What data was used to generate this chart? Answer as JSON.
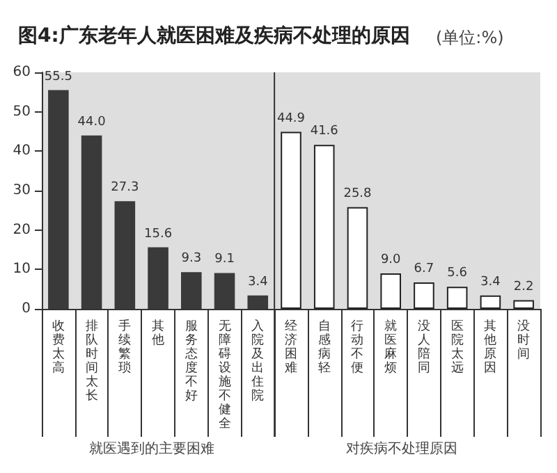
{
  "chart_data": {
    "type": "bar",
    "title": "图4:广东老年人就医困难及疾病不处理的原因",
    "subtitle": "(单位:%)",
    "categories": [
      "收费太高",
      "排队时间太长",
      "手续繁琐",
      "其他",
      "服务态度不好",
      "无障碍设施不健全",
      "入院及出住院",
      "经济困难",
      "自感病轻",
      "行动不便",
      "就医麻烦",
      "没人陪同",
      "医院太远",
      "其他原因",
      "没时间"
    ],
    "series": [
      {
        "color": "#3a3a3a",
        "values": [
          55.5,
          44.0,
          27.3,
          15.6,
          9.3,
          9.1,
          3.4,
          null,
          null,
          null,
          null,
          null,
          null,
          null,
          null
        ],
        "value_labels": [
          "55.5",
          "44.0",
          "27.3",
          "15.6",
          "9.3",
          "9.1",
          "3.4",
          null,
          null,
          null,
          null,
          null,
          null,
          null,
          null
        ]
      },
      {
        "color": "#ffffff",
        "values": [
          null,
          null,
          null,
          null,
          null,
          null,
          null,
          44.9,
          41.6,
          25.8,
          9.0,
          6.7,
          5.6,
          3.4,
          2.2
        ],
        "value_labels": [
          null,
          null,
          null,
          null,
          null,
          null,
          null,
          "44.9",
          "41.6",
          "25.8",
          "9.0",
          "6.7",
          "5.6",
          "3.4",
          "2.2"
        ]
      }
    ],
    "annotations": [
      "就医遇到的主要困难",
      "对疾病不处理原因"
    ],
    "ylim": [
      0,
      60
    ],
    "yticks": [
      0,
      10,
      20,
      30,
      40,
      50,
      60
    ]
  }
}
